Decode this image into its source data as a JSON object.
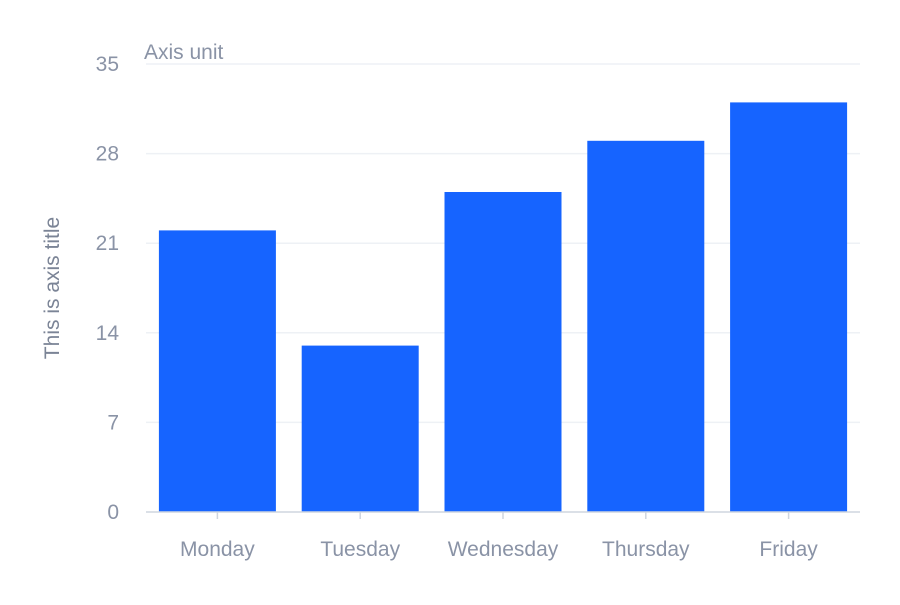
{
  "chart_data": {
    "type": "bar",
    "categories": [
      "Monday",
      "Tuesday",
      "Wednesday",
      "Thursday",
      "Friday"
    ],
    "series": [
      {
        "values": [
          22,
          13,
          25,
          29,
          32
        ]
      }
    ],
    "ylabel": "This is axis title",
    "y_unit": "Axis unit",
    "ylim": [
      0,
      35
    ],
    "yticks": [
      0,
      7,
      14,
      21,
      28,
      35
    ],
    "ytick_labels": [
      "0",
      "7",
      "14",
      "21",
      "28",
      "35"
    ],
    "grid": true,
    "legend": "none"
  },
  "colors": {
    "bar": "#1664ff"
  }
}
